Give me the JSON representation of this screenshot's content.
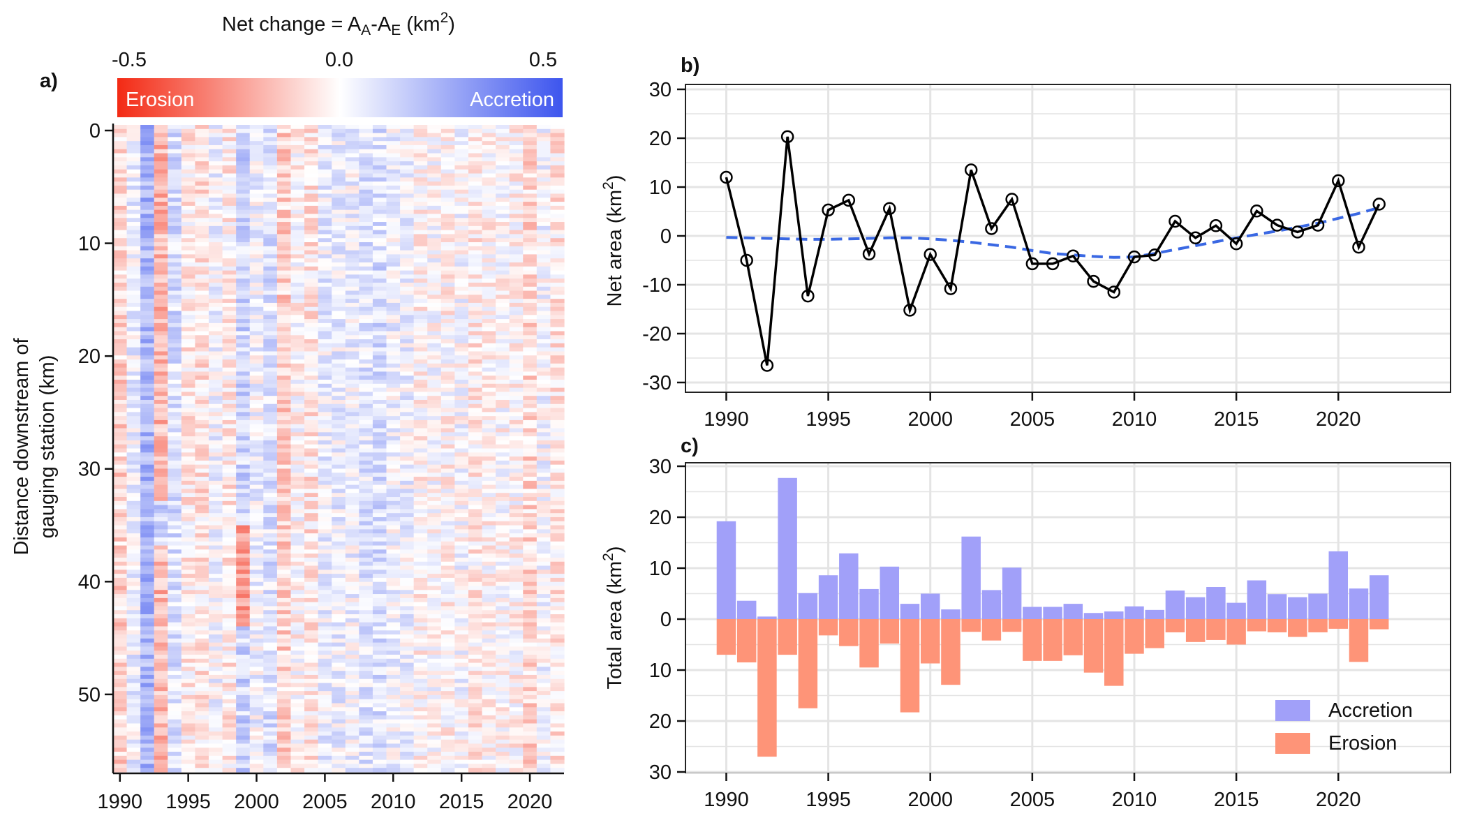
{
  "colors": {
    "erosion": "#f32a14",
    "accretion": "#3d55ee",
    "bar_accretion": "#a1a0f9",
    "bar_erosion": "#fe9478",
    "smooth_line": "#3a68e3",
    "grid": "#e4e4e4"
  },
  "chart_data": [
    {
      "id": "a",
      "panel_label": "a)",
      "type": "heatmap",
      "colorbar": {
        "title_main": "Net change = A",
        "sub_a": "A",
        "title_dash": "-A",
        "sub_e": "E",
        "title_unit": " (km",
        "sup": "2",
        "title_close": ")",
        "ticks": [
          "-0.5",
          "0.0",
          "0.5"
        ],
        "range": [
          -0.5,
          0.5
        ],
        "left_label": "Erosion",
        "right_label": "Accretion"
      },
      "ylabel_line1": "Distance downstream of",
      "ylabel_line2": "gauging station (km)",
      "yticks": [
        "0",
        "10",
        "20",
        "30",
        "40",
        "50"
      ],
      "ylim": [
        0,
        57
      ],
      "xticks": [
        "1990",
        "1995",
        "2000",
        "2005",
        "2010",
        "2015",
        "2020"
      ],
      "xlim": [
        1989.5,
        2022.5
      ]
    },
    {
      "id": "b",
      "panel_label": "b)",
      "type": "line",
      "ylabel": "Net area (km",
      "ylabel_sup": "2",
      "ylabel_close": ")",
      "yticks": [
        "30",
        "20",
        "10",
        "0",
        "-10",
        "-20",
        "-30"
      ],
      "ylim": [
        -32,
        31
      ],
      "xticks": [
        "1990",
        "1995",
        "2000",
        "2005",
        "2010",
        "2015",
        "2020"
      ],
      "xlim": [
        1988,
        2025.5
      ],
      "x": [
        1990,
        1991,
        1992,
        1993,
        1994,
        1995,
        1996,
        1997,
        1998,
        1999,
        2000,
        2001,
        2002,
        2003,
        2004,
        2005,
        2006,
        2007,
        2008,
        2009,
        2010,
        2011,
        2012,
        2013,
        2014,
        2015,
        2016,
        2017,
        2018,
        2019,
        2020,
        2021,
        2022
      ],
      "series": [
        {
          "values": [
            12,
            -5,
            -26.5,
            20.3,
            -12.3,
            5.3,
            7.3,
            -3.7,
            5.6,
            -15.2,
            -3.8,
            -10.8,
            13.5,
            1.5,
            7.5,
            -5.7,
            -5.7,
            -4.1,
            -9.3,
            -11.5,
            -4.3,
            -3.9,
            3.0,
            -0.4,
            2.1,
            -1.6,
            5.1,
            2.2,
            0.8,
            2.2,
            11.3,
            -2.3,
            6.5
          ]
        },
        {
          "values": [
            -0.3,
            -0.4,
            -0.5,
            -0.6,
            -0.7,
            -0.7,
            -0.6,
            -0.5,
            -0.4,
            -0.4,
            -0.6,
            -0.9,
            -1.3,
            -1.8,
            -2.3,
            -3.0,
            -3.6,
            -3.9,
            -4.2,
            -4.4,
            -4.3,
            -3.6,
            -2.8,
            -2.0,
            -1.2,
            -0.4,
            0.3,
            1.0,
            1.8,
            2.6,
            3.6,
            4.6,
            5.8
          ]
        }
      ]
    },
    {
      "id": "c",
      "panel_label": "c)",
      "type": "bar",
      "ylabel": "Total area (km",
      "ylabel_sup": "2",
      "ylabel_close": ")",
      "yticks": [
        "30",
        "20",
        "10",
        "0",
        "10",
        "20",
        "30"
      ],
      "ylim": [
        -30,
        30
      ],
      "xticks": [
        "1990",
        "1995",
        "2000",
        "2005",
        "2010",
        "2015",
        "2020"
      ],
      "xlim": [
        1988,
        2025.5
      ],
      "x": [
        1990,
        1991,
        1992,
        1993,
        1994,
        1995,
        1996,
        1997,
        1998,
        1999,
        2000,
        2001,
        2002,
        2003,
        2004,
        2005,
        2006,
        2007,
        2008,
        2009,
        2010,
        2011,
        2012,
        2013,
        2014,
        2015,
        2016,
        2017,
        2018,
        2019,
        2020,
        2021,
        2022
      ],
      "series": [
        {
          "name": "Accretion",
          "values": [
            19.2,
            3.6,
            0.5,
            27.7,
            5.1,
            8.6,
            12.9,
            5.9,
            10.3,
            3.0,
            5.0,
            1.9,
            16.2,
            5.7,
            10.1,
            2.4,
            2.4,
            3.0,
            1.2,
            1.5,
            2.5,
            1.8,
            5.6,
            4.3,
            6.3,
            3.2,
            7.6,
            4.9,
            4.3,
            5.0,
            13.3,
            6.0,
            8.6
          ]
        },
        {
          "name": "Erosion",
          "values": [
            7.0,
            8.5,
            27.0,
            7.0,
            17.5,
            3.2,
            5.3,
            9.5,
            4.8,
            18.3,
            8.7,
            12.9,
            2.5,
            4.2,
            2.5,
            8.2,
            8.2,
            7.1,
            10.5,
            13.1,
            6.8,
            5.7,
            2.6,
            4.5,
            4.1,
            5.0,
            2.4,
            2.6,
            3.5,
            2.6,
            1.9,
            8.4,
            2.0
          ]
        }
      ]
    }
  ]
}
